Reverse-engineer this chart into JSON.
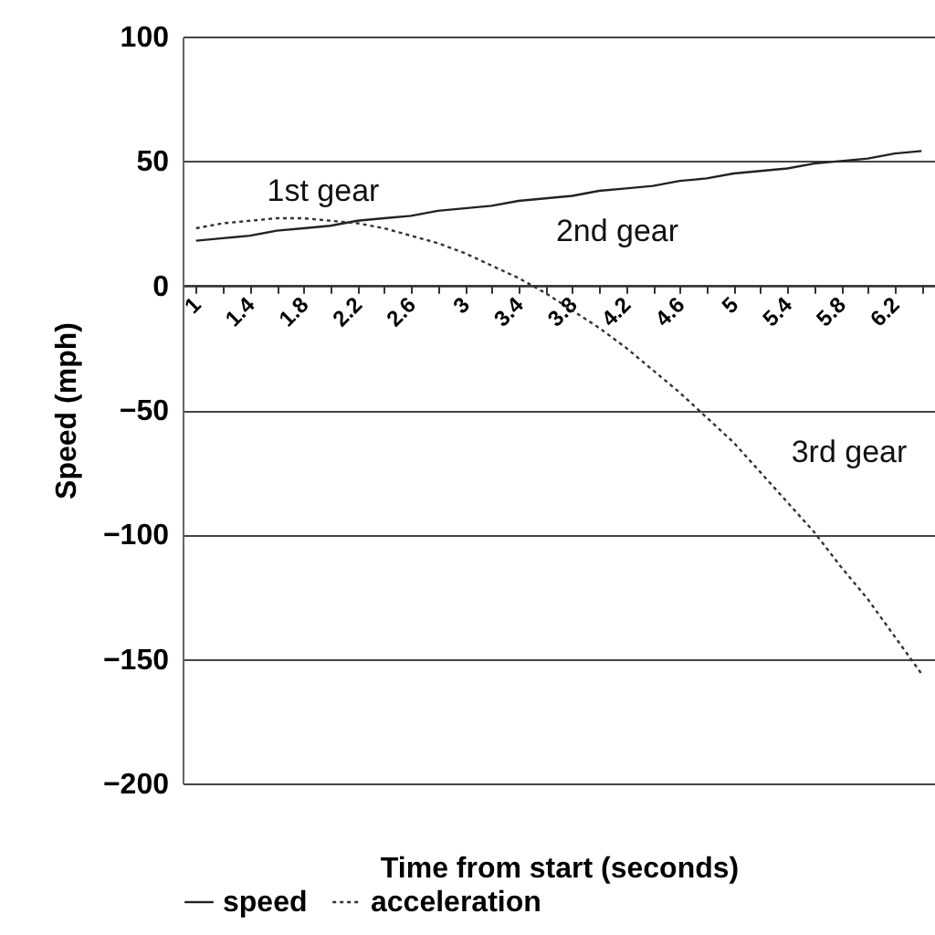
{
  "chart_data": {
    "type": "line",
    "xlabel": "Time from start (seconds)",
    "ylabel": "Speed (mph)",
    "categories": [
      "1",
      null,
      "1.4",
      null,
      "1.8",
      null,
      "2.2",
      null,
      "2.6",
      null,
      "3",
      null,
      "3.4",
      null,
      "3.8",
      null,
      "4.2",
      null,
      "4.6",
      null,
      "5",
      null,
      "5.4",
      null,
      "5.8",
      null,
      "6.2",
      null
    ],
    "series": [
      {
        "name": "speed",
        "color": "#222222",
        "line_style": "solid",
        "values": [
          18,
          19,
          20,
          22,
          23,
          24,
          26,
          27,
          28,
          30,
          31,
          32,
          34,
          35,
          36,
          38,
          39,
          40,
          42,
          43,
          45,
          46,
          47,
          49,
          50,
          51,
          53,
          54
        ]
      },
      {
        "name": "acceleration",
        "color": "#333333",
        "line_style": "dotted",
        "values": [
          23,
          25,
          26,
          27,
          27,
          26,
          25,
          23,
          20,
          17,
          13,
          8,
          3,
          -3,
          -10,
          -17,
          -25,
          -34,
          -43,
          -53,
          -63,
          -75,
          -87,
          -99,
          -113,
          -126,
          -141,
          -156
        ]
      }
    ],
    "ylim": [
      -200,
      100
    ],
    "yticks": [
      -200,
      -150,
      -100,
      -50,
      0,
      50,
      100
    ],
    "grid": "y",
    "legend": "bottom",
    "marker": "none",
    "annotations": [
      "1st gear",
      "2nd gear",
      "3rd gear"
    ]
  }
}
